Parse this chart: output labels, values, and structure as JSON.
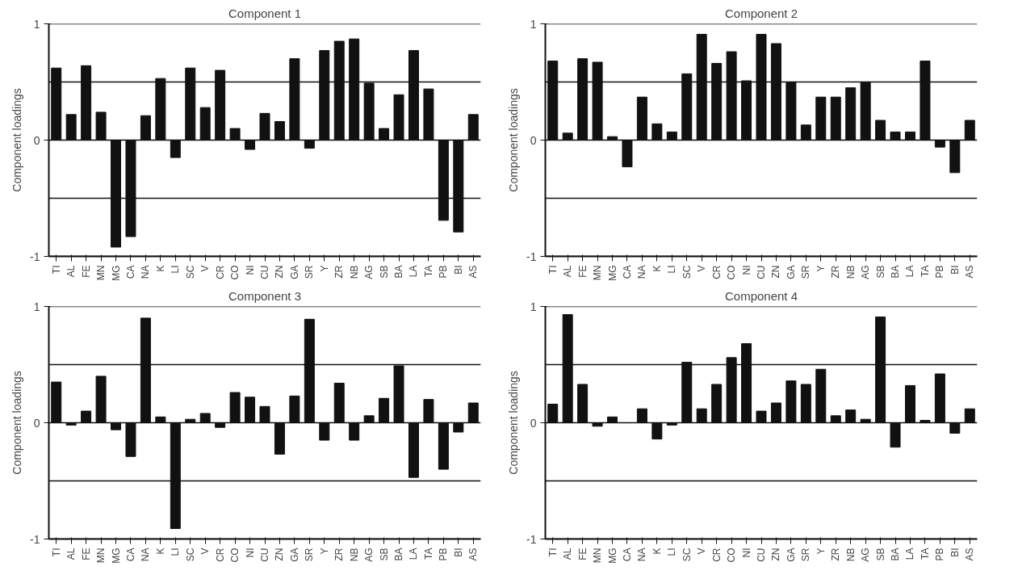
{
  "chart_data": [
    {
      "type": "bar",
      "title": "Component 1",
      "ylabel": "Component loadings",
      "color": "#111111",
      "ylim": [
        -1,
        1
      ],
      "yticks": [
        -1,
        0,
        1
      ],
      "grid": "y",
      "ref_lines": [
        {
          "axis": "y",
          "value": 0.5
        },
        {
          "axis": "y",
          "value": -0.5
        }
      ],
      "categories": [
        "TI",
        "AL",
        "FE",
        "MN",
        "MG",
        "CA",
        "NA",
        "K",
        "LI",
        "SC",
        "V",
        "CR",
        "CO",
        "NI",
        "CU",
        "ZN",
        "GA",
        "SR",
        "Y",
        "ZR",
        "NB",
        "AG",
        "SB",
        "BA",
        "LA",
        "TA",
        "PB",
        "BI",
        "AS"
      ],
      "values": [
        0.62,
        0.22,
        0.64,
        0.24,
        -0.92,
        -0.83,
        0.21,
        0.53,
        -0.15,
        0.62,
        0.28,
        0.6,
        0.1,
        -0.08,
        0.23,
        0.16,
        0.7,
        -0.07,
        0.77,
        0.85,
        0.87,
        0.49,
        0.1,
        0.39,
        0.77,
        0.44,
        -0.69,
        -0.79,
        0.22
      ]
    },
    {
      "type": "bar",
      "title": "Component 2",
      "ylabel": "Component loadings",
      "color": "#111111",
      "ylim": [
        -1,
        1
      ],
      "yticks": [
        -1,
        0,
        1
      ],
      "grid": "y",
      "ref_lines": [
        {
          "axis": "y",
          "value": 0.5
        },
        {
          "axis": "y",
          "value": -0.5
        }
      ],
      "categories": [
        "TI",
        "AL",
        "FE",
        "MN",
        "MG",
        "CA",
        "NA",
        "K",
        "LI",
        "SC",
        "V",
        "CR",
        "CO",
        "NI",
        "CU",
        "ZN",
        "GA",
        "SR",
        "Y",
        "ZR",
        "NB",
        "AG",
        "SB",
        "BA",
        "LA",
        "TA",
        "PB",
        "BI",
        "AS"
      ],
      "values": [
        0.68,
        0.06,
        0.7,
        0.67,
        0.03,
        -0.23,
        0.37,
        0.14,
        0.07,
        0.57,
        0.91,
        0.66,
        0.76,
        0.51,
        0.91,
        0.83,
        0.5,
        0.13,
        0.37,
        0.37,
        0.45,
        0.5,
        0.17,
        0.07,
        0.07,
        0.68,
        -0.06,
        -0.28,
        0.17
      ]
    },
    {
      "type": "bar",
      "title": "Component 3",
      "ylabel": "Component loadings",
      "color": "#111111",
      "ylim": [
        -1,
        1
      ],
      "yticks": [
        -1,
        0,
        1
      ],
      "grid": "y",
      "ref_lines": [
        {
          "axis": "y",
          "value": 0.5
        },
        {
          "axis": "y",
          "value": -0.5
        }
      ],
      "categories": [
        "TI",
        "AL",
        "FE",
        "MN",
        "MG",
        "CA",
        "NA",
        "K",
        "LI",
        "SC",
        "V",
        "CR",
        "CO",
        "NI",
        "CU",
        "ZN",
        "GA",
        "SR",
        "Y",
        "ZR",
        "NB",
        "AG",
        "SB",
        "BA",
        "LA",
        "TA",
        "PB",
        "BI",
        "AS"
      ],
      "values": [
        0.35,
        -0.02,
        0.1,
        0.4,
        -0.06,
        -0.29,
        0.9,
        0.05,
        -0.91,
        0.03,
        0.08,
        -0.04,
        0.26,
        0.22,
        0.14,
        -0.27,
        0.23,
        0.89,
        -0.15,
        0.34,
        -0.15,
        0.06,
        0.21,
        0.49,
        -0.47,
        0.2,
        -0.4,
        -0.08,
        0.17
      ]
    },
    {
      "type": "bar",
      "title": "Component 4",
      "ylabel": "Component loadings",
      "color": "#111111",
      "ylim": [
        -1,
        1
      ],
      "yticks": [
        -1,
        0,
        1
      ],
      "grid": "y",
      "ref_lines": [
        {
          "axis": "y",
          "value": 0.5
        },
        {
          "axis": "y",
          "value": -0.5
        }
      ],
      "categories": [
        "TI",
        "AL",
        "FE",
        "MN",
        "MG",
        "CA",
        "NA",
        "K",
        "LI",
        "SC",
        "V",
        "CR",
        "CO",
        "NI",
        "CU",
        "ZN",
        "GA",
        "SR",
        "Y",
        "ZR",
        "NB",
        "AG",
        "SB",
        "BA",
        "LA",
        "TA",
        "PB",
        "BI",
        "AS"
      ],
      "values": [
        0.16,
        0.93,
        0.33,
        -0.03,
        0.05,
        0,
        0.12,
        -0.14,
        -0.02,
        0.52,
        0.12,
        0.33,
        0.56,
        0.68,
        0.1,
        0.17,
        0.36,
        0.33,
        0.46,
        0.06,
        0.11,
        0.03,
        0.91,
        -0.21,
        0.32,
        0.02,
        0.42,
        -0.09,
        0.12
      ]
    }
  ]
}
